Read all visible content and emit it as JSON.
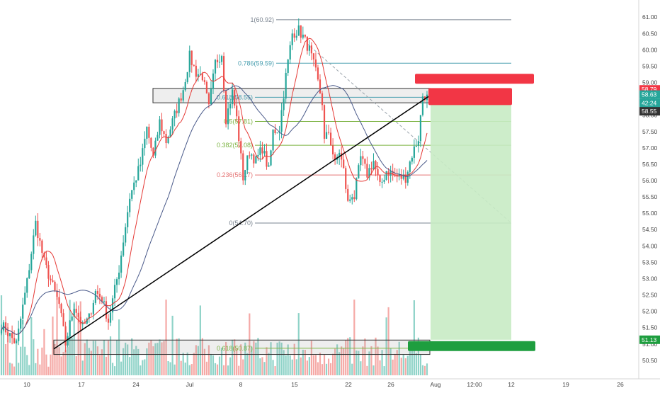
{
  "colors": {
    "up": "#26a69a",
    "down": "#ef5350",
    "vol_up": "#8fd3c8",
    "vol_down": "#f5a9a6",
    "ma_fast": "#e53935",
    "ma_slow": "#4a5a8a",
    "fib_teal": "#4a9fb0",
    "fib_green": "#7cb342",
    "fib_red": "#e57373",
    "fib_grey": "#7a8490",
    "target_zone": "#c8ebc4",
    "stop_zone": "#ffd0d0",
    "badge_green": "#1e9e3f",
    "badge_red": "#f23645",
    "axis_text": "#444444",
    "price_axis_bg": "#ffffff"
  },
  "chart_data": {
    "type": "candlestick",
    "price_axis": {
      "ticks": [
        "61.00",
        "60.50",
        "60.00",
        "59.50",
        "59.00",
        "58.50",
        "58.00",
        "57.50",
        "57.00",
        "56.50",
        "56.00",
        "55.50",
        "55.00",
        "54.50",
        "54.00",
        "53.50",
        "53.00",
        "52.50",
        "52.00",
        "51.50",
        "51.00",
        "50.50"
      ],
      "range": [
        50.25,
        61.2
      ]
    },
    "time_axis": {
      "ticks": [
        "10",
        "17",
        "24",
        "Jul",
        "8",
        "15",
        "22",
        "26",
        "Aug",
        "12:00",
        "12",
        "19",
        "26"
      ]
    },
    "price_labels": [
      {
        "text": "58.79",
        "kind": "stop"
      },
      {
        "text": "58.63",
        "kind": "last"
      },
      {
        "text": "42:24",
        "kind": "countdown"
      },
      {
        "text": "58.55",
        "kind": "entry"
      },
      {
        "text": "51.13",
        "kind": "target"
      }
    ],
    "fibonacci": [
      {
        "label": "1(60.92)",
        "price": 60.92,
        "color_key": "fib_grey"
      },
      {
        "label": "0.786(59.59)",
        "price": 59.59,
        "color_key": "fib_teal"
      },
      {
        "label": "0.618(58.55)",
        "price": 58.55,
        "color_key": "fib_teal"
      },
      {
        "label": "0.5(57.81)",
        "price": 57.81,
        "color_key": "fib_green"
      },
      {
        "label": "0.382(57.08)",
        "price": 57.08,
        "color_key": "fib_green"
      },
      {
        "label": "0.236(56.17)",
        "price": 56.17,
        "color_key": "fib_red"
      },
      {
        "label": "0(54.70)",
        "price": 54.7,
        "color_key": "fib_grey"
      },
      {
        "label": "0.618(50.87)",
        "price": 50.87,
        "color_key": "fib_green"
      }
    ],
    "zones": [
      {
        "name": "resistance-zone",
        "top": 58.82,
        "bottom": 58.38
      },
      {
        "name": "support-zone",
        "top": 51.12,
        "bottom": 50.68
      }
    ],
    "position": {
      "type": "short",
      "entry": 58.55,
      "stop": 58.79,
      "target": 51.13
    },
    "candles": {
      "count": 200,
      "path": [
        [
          0,
          51.6
        ],
        [
          7,
          51.0
        ],
        [
          12,
          52.9
        ],
        [
          16,
          54.7
        ],
        [
          20,
          53.5
        ],
        [
          27,
          52.2
        ],
        [
          30,
          51.0
        ],
        [
          34,
          52.2
        ],
        [
          38,
          51.5
        ],
        [
          41,
          51.8
        ],
        [
          44,
          52.6
        ],
        [
          47,
          52.4
        ],
        [
          50,
          51.7
        ],
        [
          55,
          53.3
        ],
        [
          60,
          55.5
        ],
        [
          65,
          56.5
        ],
        [
          68,
          57.6
        ],
        [
          71,
          56.7
        ],
        [
          74,
          57.8
        ],
        [
          77,
          57.2
        ],
        [
          81,
          58.0
        ],
        [
          85,
          58.8
        ],
        [
          88,
          59.8
        ],
        [
          91,
          59.3
        ],
        [
          94,
          59.2
        ],
        [
          97,
          58.2
        ],
        [
          100,
          59.6
        ],
        [
          103,
          59.9
        ],
        [
          105,
          57.9
        ],
        [
          108,
          58.7
        ],
        [
          110,
          57.9
        ],
        [
          113,
          56.1
        ],
        [
          116,
          56.9
        ],
        [
          119,
          56.6
        ],
        [
          122,
          57.0
        ],
        [
          125,
          56.3
        ],
        [
          127,
          57.5
        ],
        [
          130,
          57.6
        ],
        [
          133,
          59.2
        ],
        [
          136,
          60.5
        ],
        [
          139,
          60.6
        ],
        [
          141,
          60.4
        ],
        [
          144,
          60.0
        ],
        [
          147,
          59.3
        ],
        [
          150,
          58.4
        ],
        [
          151,
          57.2
        ],
        [
          153,
          57.5
        ],
        [
          156,
          56.5
        ],
        [
          158,
          56.9
        ],
        [
          160,
          56.3
        ],
        [
          162,
          55.3
        ],
        [
          164,
          55.6
        ],
        [
          165,
          55.5
        ],
        [
          168,
          56.7
        ],
        [
          171,
          56.2
        ],
        [
          174,
          56.6
        ],
        [
          177,
          55.8
        ],
        [
          180,
          56.3
        ],
        [
          183,
          56.2
        ],
        [
          186,
          56.1
        ],
        [
          189,
          56.1
        ],
        [
          192,
          56.8
        ],
        [
          195,
          57.3
        ],
        [
          197,
          58.6
        ],
        [
          199,
          58.63
        ]
      ]
    },
    "volume": {
      "scale_max": 1.0
    }
  }
}
